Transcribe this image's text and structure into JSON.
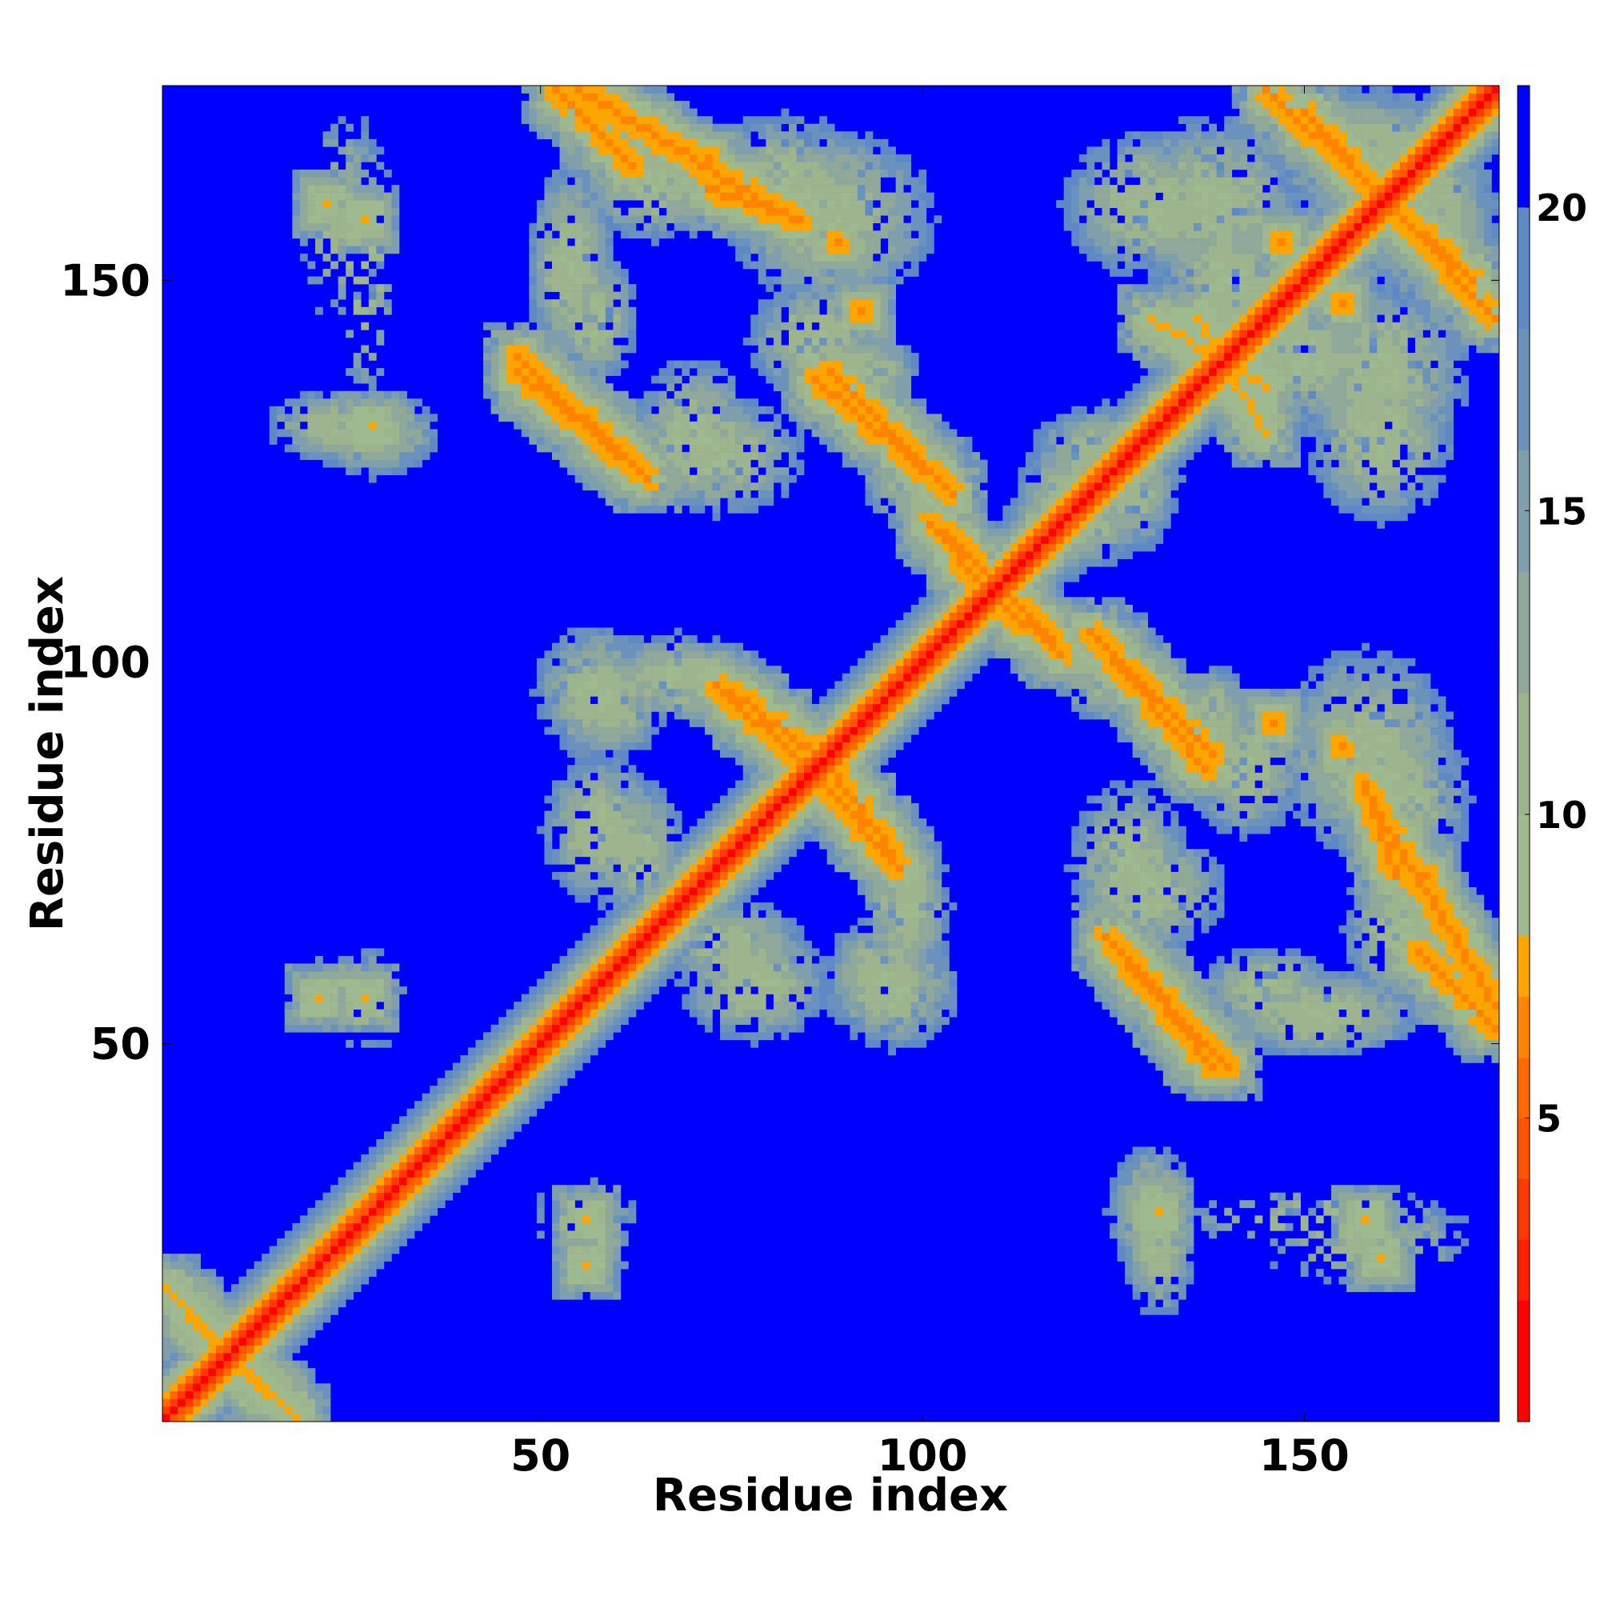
{
  "chart_data": {
    "type": "heatmap",
    "title": "",
    "xlabel": "Residue index",
    "ylabel": "Residue index",
    "n_residues": 175,
    "xlim": [
      1,
      175
    ],
    "ylim": [
      1,
      175
    ],
    "x_ticks": [
      50,
      100,
      150
    ],
    "y_ticks": [
      50,
      100,
      150
    ],
    "colorbar": {
      "ticks": [
        5,
        10,
        15,
        20
      ],
      "range": [
        0,
        22
      ],
      "bins": [
        {
          "min": 0,
          "max": 2,
          "color": "#ff0000"
        },
        {
          "min": 2,
          "max": 3,
          "color": "#ff2000"
        },
        {
          "min": 3,
          "max": 4,
          "color": "#ff3a00"
        },
        {
          "min": 4,
          "max": 5,
          "color": "#ff5500"
        },
        {
          "min": 5,
          "max": 6,
          "color": "#ff6a00"
        },
        {
          "min": 6,
          "max": 7,
          "color": "#ff8500"
        },
        {
          "min": 7,
          "max": 8,
          "color": "#ffa500"
        },
        {
          "min": 8,
          "max": 10,
          "color": "#9eba8e"
        },
        {
          "min": 10,
          "max": 12,
          "color": "#9db48e"
        },
        {
          "min": 12,
          "max": 14,
          "color": "#8fa89a"
        },
        {
          "min": 14,
          "max": 16,
          "color": "#809fac"
        },
        {
          "min": 16,
          "max": 18,
          "color": "#6b92bd"
        },
        {
          "min": 18,
          "max": 20,
          "color": "#5f89c4"
        },
        {
          "min": 20,
          "max": 22,
          "color": "#0000ff"
        }
      ]
    },
    "background_color": "#0000ff",
    "diagonal_band": [
      {
        "d": 0,
        "value": 1
      },
      {
        "d": 1,
        "value": 3.8
      },
      {
        "d": 2,
        "value": 5.5
      },
      {
        "d": 3,
        "value": 7.5
      },
      {
        "d": 4,
        "value": 10
      },
      {
        "d": 5,
        "value": 12
      },
      {
        "d": 6,
        "value": 15
      },
      {
        "d": 7,
        "value": 17
      },
      {
        "d": 8,
        "value": 19
      }
    ],
    "contact_features": [
      {
        "shape": "line",
        "from": [
          55,
          175
        ],
        "to": [
          83,
          158
        ],
        "value": 6
      },
      {
        "shape": "line",
        "from": [
          47,
          138
        ],
        "to": [
          63,
          125
        ],
        "value": 6
      },
      {
        "shape": "line",
        "from": [
          86,
          137
        ],
        "to": [
          104,
          122
        ],
        "value": 6
      },
      {
        "shape": "line",
        "from": [
          103,
          117
        ],
        "to": [
          110,
          110
        ],
        "value": 6
      },
      {
        "shape": "line",
        "from": [
          75,
          96
        ],
        "to": [
          86,
          88
        ],
        "value": 6
      },
      {
        "shape": "line",
        "from": [
          87,
          84
        ],
        "to": [
          97,
          73
        ],
        "value": 6
      },
      {
        "shape": "line",
        "from": [
          110,
          108
        ],
        "to": [
          118,
          101
        ],
        "value": 6
      },
      {
        "shape": "line",
        "from": [
          125,
          101
        ],
        "to": [
          138,
          88
        ],
        "value": 6
      },
      {
        "shape": "line",
        "from": [
          124,
          64
        ],
        "to": [
          140,
          47
        ],
        "value": 6
      },
      {
        "shape": "line",
        "from": [
          158,
          84
        ],
        "to": [
          162,
          72
        ],
        "value": 6
      },
      {
        "shape": "line",
        "from": [
          165,
          62
        ],
        "to": [
          175,
          52
        ],
        "value": 6
      },
      {
        "shape": "line",
        "from": [
          150,
          172
        ],
        "to": [
          175,
          145
        ],
        "value": 6
      },
      {
        "shape": "line",
        "from": [
          1,
          18
        ],
        "to": [
          14,
          4
        ],
        "value": 7
      },
      {
        "shape": "line",
        "from": [
          136,
          145
        ],
        "to": [
          145,
          130
        ],
        "value": 7
      },
      {
        "shape": "point",
        "at": [
          72,
          166
        ],
        "value": 6
      },
      {
        "shape": "point",
        "at": [
          89,
          155
        ],
        "value": 6
      },
      {
        "shape": "point",
        "at": [
          147,
          155
        ],
        "value": 6
      },
      {
        "shape": "point",
        "at": [
          22,
          160
        ],
        "value": 7
      },
      {
        "shape": "point",
        "at": [
          21,
          56
        ],
        "value": 7
      },
      {
        "shape": "point",
        "at": [
          56,
          27
        ],
        "value": 7
      },
      {
        "shape": "point",
        "at": [
          131,
          28
        ],
        "value": 7
      },
      {
        "shape": "point",
        "at": [
          158,
          27
        ],
        "value": 7
      },
      {
        "shape": "point",
        "at": [
          146,
          92
        ],
        "value": 6
      }
    ],
    "contact_regions": [
      {
        "cx": 65,
        "cy": 163,
        "rx": 11,
        "ry": 8
      },
      {
        "cx": 88,
        "cy": 158,
        "rx": 14,
        "ry": 12
      },
      {
        "cx": 57,
        "cy": 145,
        "rx": 6,
        "ry": 9
      },
      {
        "cx": 73,
        "cy": 127,
        "rx": 12,
        "ry": 8
      },
      {
        "cx": 92,
        "cy": 138,
        "rx": 8,
        "ry": 6
      },
      {
        "cx": 100,
        "cy": 124,
        "rx": 8,
        "ry": 8
      },
      {
        "cx": 127,
        "cy": 124,
        "rx": 7,
        "ry": 10
      },
      {
        "cx": 59,
        "cy": 95,
        "rx": 8,
        "ry": 8
      },
      {
        "cx": 68,
        "cy": 98,
        "rx": 10,
        "ry": 6
      },
      {
        "cx": 58,
        "cy": 78,
        "rx": 8,
        "ry": 10
      },
      {
        "cx": 75,
        "cy": 63,
        "rx": 10,
        "ry": 6
      },
      {
        "cx": 96,
        "cy": 57,
        "rx": 9,
        "ry": 8
      },
      {
        "cx": 98,
        "cy": 72,
        "rx": 5,
        "ry": 8
      },
      {
        "cx": 142,
        "cy": 86,
        "rx": 8,
        "ry": 9
      },
      {
        "cx": 162,
        "cy": 82,
        "rx": 10,
        "ry": 12
      },
      {
        "cx": 130,
        "cy": 70,
        "rx": 10,
        "ry": 8
      },
      {
        "cx": 152,
        "cy": 54,
        "rx": 14,
        "ry": 6
      },
      {
        "cx": 130,
        "cy": 160,
        "rx": 12,
        "ry": 10
      },
      {
        "cx": 140,
        "cy": 150,
        "rx": 10,
        "ry": 10
      },
      {
        "cx": 166,
        "cy": 158,
        "rx": 10,
        "ry": 12
      },
      {
        "cx": 160,
        "cy": 138,
        "rx": 12,
        "ry": 12
      },
      {
        "cx": 120,
        "cy": 118,
        "rx": 10,
        "ry": 6
      },
      {
        "cx": 24,
        "cy": 131,
        "rx": 10,
        "ry": 5
      },
      {
        "cx": 130,
        "cy": 28,
        "rx": 6,
        "ry": 9
      },
      {
        "cx": 24,
        "cy": 158,
        "rx": 6,
        "ry": 14,
        "sparse": true
      },
      {
        "cx": 24,
        "cy": 57,
        "rx": 6,
        "ry": 5,
        "sparse": true
      },
      {
        "cx": 56,
        "cy": 27,
        "rx": 7,
        "ry": 6,
        "sparse": true
      },
      {
        "cx": 152,
        "cy": 27,
        "rx": 20,
        "ry": 4,
        "sparse": true
      }
    ]
  }
}
